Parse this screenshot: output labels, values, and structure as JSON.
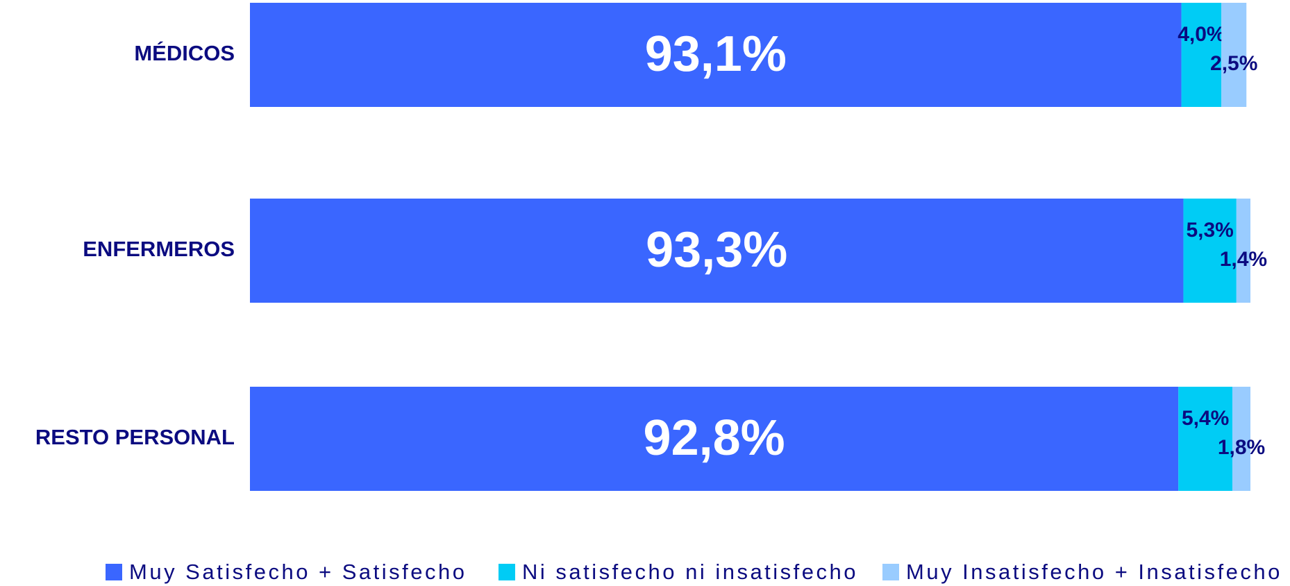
{
  "chart_data": {
    "type": "stacked-bar-horizontal",
    "categories": [
      "MÉDICOS",
      "ENFERMEROS",
      "RESTO PERSONAL"
    ],
    "series": [
      {
        "name": "Muy Satisfecho + Satisfecho",
        "color": "#3a66ff",
        "values": [
          93.1,
          93.3,
          92.8
        ],
        "value_labels": [
          "93,1%",
          "93,3%",
          "92,8%"
        ]
      },
      {
        "name": "Ni satisfecho ni insatisfecho",
        "color": "#00ccf5",
        "values": [
          4.0,
          5.3,
          5.4
        ],
        "value_labels": [
          "4,0%",
          "5,3%",
          "5,4%"
        ]
      },
      {
        "name": "Muy Insatisfecho + Insatisfecho",
        "color": "#99ccff",
        "values": [
          2.5,
          1.4,
          1.8
        ],
        "value_labels": [
          "2,5%",
          "1,4%",
          "1,8%"
        ]
      }
    ],
    "xlim": [
      0,
      100
    ],
    "legend": "bottom"
  }
}
